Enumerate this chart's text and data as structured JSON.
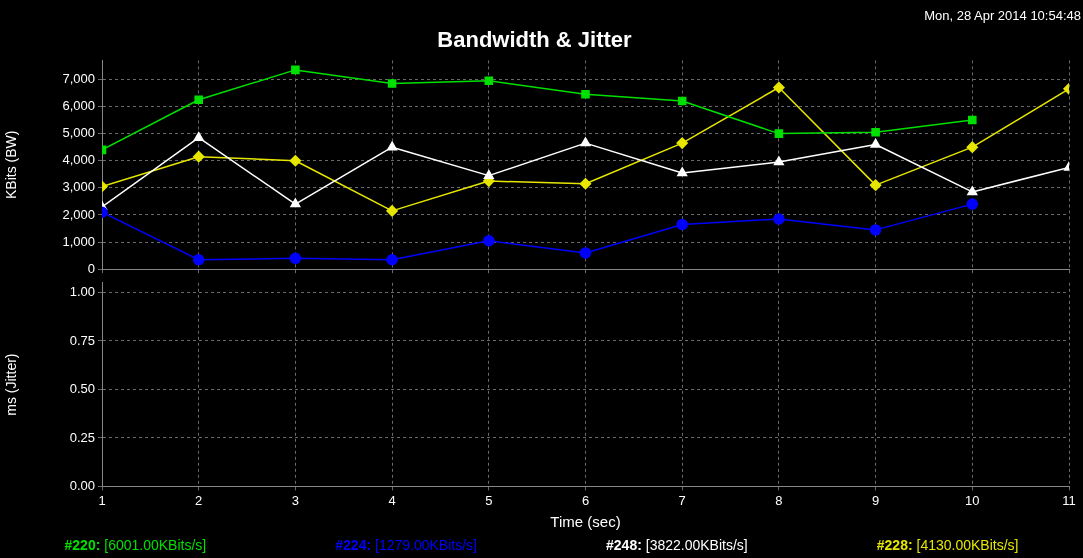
{
  "chart_data": [
    {
      "type": "line",
      "title": "Bandwidth & Jitter",
      "ylabel": "KBits (BW)",
      "annotations": [
        "Mon, 28 Apr 2014 10:54:48"
      ],
      "x": [
        1,
        2,
        3,
        4,
        5,
        6,
        7,
        8,
        9,
        10,
        11
      ],
      "xlim": [
        1,
        11
      ],
      "xticks": [
        1,
        2,
        3,
        4,
        5,
        6,
        7,
        8,
        9,
        10,
        11
      ],
      "ylim": [
        0,
        7700
      ],
      "yticks": [
        {
          "value": 0,
          "label": "0"
        },
        {
          "value": 1000,
          "label": "1,000"
        },
        {
          "value": 2000,
          "label": "2,000"
        },
        {
          "value": 3000,
          "label": "3,000"
        },
        {
          "value": 4000,
          "label": "4,000"
        },
        {
          "value": 5000,
          "label": "5,000"
        },
        {
          "value": 6000,
          "label": "6,000"
        },
        {
          "value": 7000,
          "label": "7,000"
        }
      ],
      "tick_labels": "y",
      "grid": true,
      "legend": "bottom",
      "series": [
        {
          "name": "#220: [6001.00KBits/s]",
          "color": "#00e000",
          "marker": "square",
          "values": [
            4400,
            6250,
            7350,
            6850,
            6950,
            6450,
            6200,
            5000,
            5050,
            5500,
            null
          ]
        },
        {
          "name": "#224: [1279.00KBits/s]",
          "color": "#0000ff",
          "marker": "circle",
          "values": [
            2100,
            350,
            400,
            350,
            1050,
            600,
            1650,
            1850,
            1450,
            2400,
            null
          ]
        },
        {
          "name": "#248: [3822.00KBits/s]",
          "color": "#ffffff",
          "marker": "triangle",
          "values": [
            2300,
            4850,
            2400,
            4500,
            3450,
            4650,
            3550,
            3950,
            4600,
            2850,
            3750
          ]
        },
        {
          "name": "#228: [4130.00KBits/s]",
          "color": "#e6e600",
          "marker": "diamond",
          "values": [
            3050,
            4150,
            4000,
            2150,
            3250,
            3150,
            4650,
            6700,
            3100,
            4500,
            6650
          ]
        }
      ]
    },
    {
      "type": "line",
      "xlabel": "Time (sec)",
      "ylabel": "ms (Jitter)",
      "xlim": [
        1,
        11
      ],
      "xticks": [
        1,
        2,
        3,
        4,
        5,
        6,
        7,
        8,
        9,
        10,
        11
      ],
      "ylim": [
        0,
        1.05
      ],
      "yticks": [
        {
          "value": 0,
          "label": "0.00"
        },
        {
          "value": 0.25,
          "label": "0.25"
        },
        {
          "value": 0.5,
          "label": "0.50"
        },
        {
          "value": 0.75,
          "label": "0.75"
        },
        {
          "value": 1,
          "label": "1.00"
        }
      ],
      "grid": true
    }
  ]
}
